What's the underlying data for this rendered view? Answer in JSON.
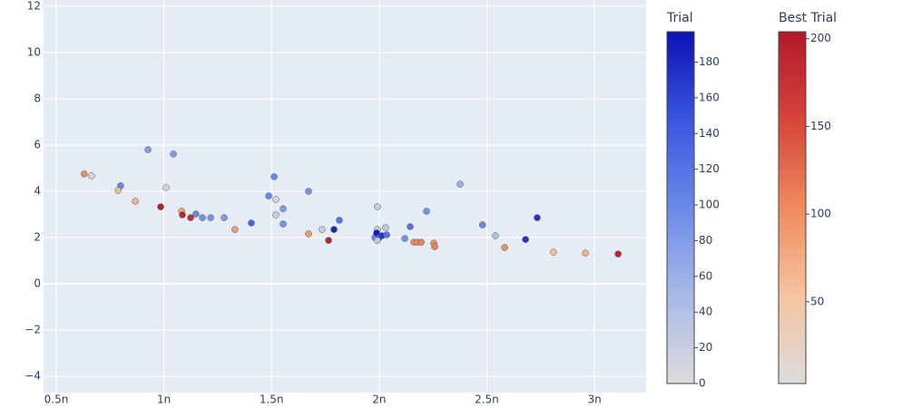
{
  "chart_data": {
    "type": "scatter",
    "xlim": [
      4.41e-10,
      3.24e-09
    ],
    "ylim": [
      -4.7,
      12.27
    ],
    "xticks": [
      {
        "value": 5e-10,
        "label": "0.5n"
      },
      {
        "value": 1e-09,
        "label": "1n"
      },
      {
        "value": 1.5e-09,
        "label": "1.5n"
      },
      {
        "value": 2e-09,
        "label": "2n"
      },
      {
        "value": 2.5e-09,
        "label": "2.5n"
      },
      {
        "value": 3e-09,
        "label": "3n"
      }
    ],
    "yticks": [
      {
        "value": -4,
        "label": "−4"
      },
      {
        "value": -2,
        "label": "−2"
      },
      0,
      2,
      4,
      6,
      8,
      10,
      12
    ],
    "grid": true,
    "series": [
      {
        "name": "Trial",
        "colorscale": [
          "#dcdcdc",
          "#a9b9e6",
          "#6a8ae8",
          "#3a55e0",
          "#0a12b3"
        ],
        "clim": [
          0,
          197
        ],
        "cticks": [
          0,
          20,
          40,
          60,
          80,
          100,
          120,
          140,
          160,
          180
        ],
        "x": [
          6.64e-10,
          7.99e-10,
          9.26e-10,
          1.01e-09,
          1.044e-09,
          1.149e-09,
          1.179e-09,
          1.217e-09,
          1.28e-09,
          1.406e-09,
          1.487e-09,
          1.512e-09,
          1.52e-09,
          1.52e-09,
          1.554e-09,
          1.554e-09,
          1.672e-09,
          1.735e-09,
          1.79e-09,
          1.815e-09,
          1.992e-09,
          1.992e-09,
          1.98e-09,
          1.988e-09,
          2e-09,
          1.992e-09,
          2.013e-09,
          2.035e-09,
          2.03e-09,
          2.119e-09,
          2.144e-09,
          2.22e-09,
          2.376e-09,
          2.48e-09,
          2.54e-09,
          2.68e-09,
          2.734e-09
        ],
        "y": [
          4.67,
          4.24,
          5.8,
          4.16,
          5.61,
          3.02,
          2.86,
          2.86,
          2.86,
          2.63,
          3.8,
          4.63,
          3.65,
          2.98,
          3.25,
          2.59,
          4.0,
          2.35,
          2.35,
          2.75,
          3.33,
          2.35,
          2.0,
          2.2,
          2.0,
          1.88,
          2.08,
          2.12,
          2.43,
          1.96,
          2.47,
          3.14,
          4.31,
          2.55,
          2.08,
          1.92,
          2.86
        ],
        "color_values": [
          10,
          100,
          80,
          10,
          80,
          100,
          90,
          90,
          80,
          130,
          100,
          100,
          10,
          20,
          80,
          90,
          90,
          20,
          180,
          120,
          20,
          20,
          100,
          190,
          140,
          30,
          170,
          120,
          30,
          90,
          120,
          90,
          60,
          100,
          40,
          170,
          170
        ]
      },
      {
        "name": "Best Trial",
        "colorscale": [
          "#dcdcdc",
          "#f5c4a0",
          "#f08a5e",
          "#d4453a",
          "#b2182b"
        ],
        "clim": [
          3.4,
          204
        ],
        "cticks": [
          50,
          100,
          150,
          200
        ],
        "x": [
          6.3e-10,
          7.87e-10,
          8.67e-10,
          9.85e-10,
          1.082e-09,
          1.086e-09,
          1.124e-09,
          1.33e-09,
          1.672e-09,
          1.765e-09,
          2.161e-09,
          2.178e-09,
          2.195e-09,
          2.254e-09,
          2.258e-09,
          2.583e-09,
          2.81e-09,
          2.958e-09,
          3.11e-09
        ],
        "y": [
          4.75,
          4.04,
          3.57,
          3.33,
          3.14,
          2.98,
          2.86,
          2.35,
          2.16,
          1.88,
          1.8,
          1.8,
          1.8,
          1.76,
          1.61,
          1.57,
          1.37,
          1.33,
          1.29
        ],
        "color_values": [
          100,
          60,
          70,
          200,
          80,
          190,
          180,
          90,
          90,
          190,
          100,
          100,
          110,
          100,
          110,
          100,
          60,
          70,
          190
        ]
      }
    ]
  }
}
